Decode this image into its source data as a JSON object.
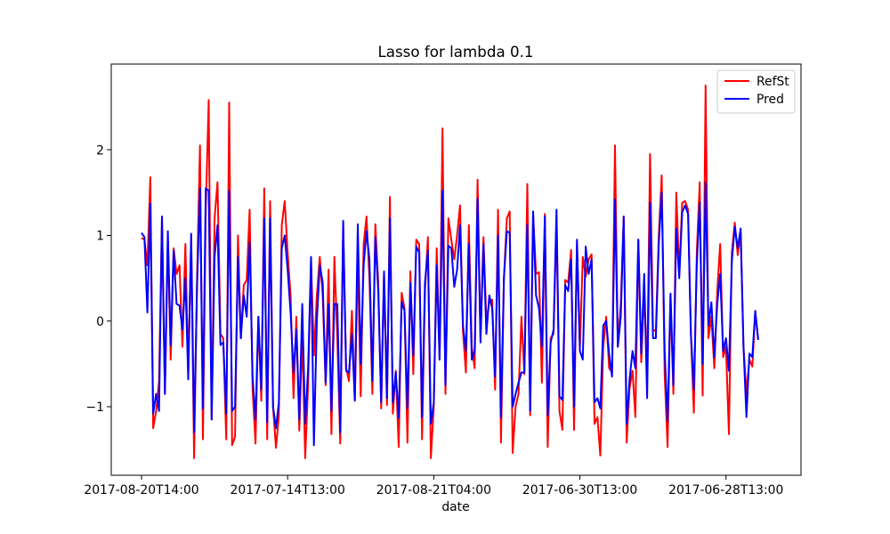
{
  "chart_data": {
    "type": "line",
    "title": "Lasso for lambda 0.1",
    "xlabel": "date",
    "ylabel": "",
    "ylim": [
      -1.8,
      3.0
    ],
    "y_ticks": [
      -1,
      0,
      1,
      2
    ],
    "x_ticks": [
      {
        "index": 0,
        "label": "2017-08-20T14:00"
      },
      {
        "index": 50,
        "label": "2017-07-14T13:00"
      },
      {
        "index": 100,
        "label": "2017-08-21T04:00"
      },
      {
        "index": 150,
        "label": "2017-06-30T13:00"
      },
      {
        "index": 200,
        "label": "2017-06-28T13:00"
      }
    ],
    "n_points": 216,
    "grid": false,
    "legend_position": "upper right",
    "series": [
      {
        "name": "RefSt",
        "color": "#ff0000",
        "values": [
          0.97,
          0.95,
          0.65,
          1.68,
          -1.25,
          -1.05,
          -0.7,
          1.2,
          -0.85,
          0.95,
          -0.45,
          0.85,
          0.55,
          0.65,
          -0.3,
          0.9,
          -0.6,
          0.95,
          -1.6,
          0.5,
          2.05,
          -1.38,
          1.3,
          2.58,
          -1.15,
          1.2,
          1.62,
          -0.15,
          -0.2,
          -1.38,
          2.55,
          -1.45,
          -1.35,
          1.0,
          -0.2,
          0.42,
          0.48,
          1.3,
          -0.8,
          -1.43,
          0.05,
          -0.93,
          1.55,
          -1.38,
          1.4,
          -1.0,
          -1.48,
          -1.1,
          1.12,
          1.4,
          0.8,
          0.3,
          -0.9,
          0.05,
          -1.28,
          -0.15,
          -1.6,
          -0.75,
          0.72,
          -0.4,
          0.3,
          0.75,
          0.3,
          -0.75,
          0.6,
          -1.32,
          0.75,
          -0.2,
          -1.43,
          1.08,
          -0.55,
          -0.7,
          0.12,
          -0.92,
          0.75,
          -0.88,
          0.9,
          1.22,
          0.5,
          -0.85,
          1.13,
          0.45,
          -1.02,
          0.55,
          -0.98,
          1.45,
          -1.08,
          -0.58,
          -1.47,
          0.33,
          0.15,
          -1.42,
          0.58,
          -0.62,
          0.95,
          0.9,
          -1.38,
          0.35,
          0.98,
          -1.6,
          -1.0,
          0.85,
          -0.45,
          2.25,
          -0.85,
          1.2,
          0.95,
          0.72,
          1.0,
          1.35,
          -0.12,
          -0.6,
          1.12,
          -0.3,
          -0.55,
          1.65,
          -0.2,
          0.98,
          0.0,
          0.22,
          0.25,
          -0.8,
          1.3,
          -1.42,
          0.5,
          1.2,
          1.28,
          -1.54,
          -1.0,
          -0.85,
          0.05,
          -0.62,
          1.6,
          -1.1,
          1.25,
          0.55,
          0.57,
          -0.72,
          1.25,
          -1.47,
          -0.2,
          -0.15,
          1.2,
          -1.05,
          -1.27,
          0.48,
          0.45,
          0.83,
          -1.27,
          0.9,
          -0.3,
          0.75,
          0.52,
          0.72,
          0.78,
          -1.2,
          -1.12,
          -1.57,
          -0.3,
          0.05,
          -0.55,
          -0.6,
          2.05,
          -0.3,
          0.2,
          1.22,
          -1.42,
          -0.78,
          -0.58,
          -1.12,
          0.95,
          -0.48,
          0.35,
          -0.62,
          1.95,
          -0.1,
          -0.12,
          1.0,
          1.7,
          -0.62,
          -1.47,
          0.3,
          -0.85,
          1.5,
          0.55,
          1.38,
          1.4,
          1.3,
          -0.15,
          -1.07,
          0.8,
          1.62,
          -0.87,
          2.75,
          -0.2,
          0.05,
          -0.55,
          0.35,
          0.9,
          -0.42,
          -0.3,
          -1.32,
          0.8,
          1.15,
          0.77,
          1.03,
          -0.3,
          -0.85,
          -0.45,
          -0.53,
          0.1,
          -0.22
        ]
      },
      {
        "name": "Pred",
        "color": "#0000ff",
        "values": [
          1.03,
          0.98,
          0.1,
          1.37,
          -1.08,
          -0.85,
          -1.05,
          1.22,
          -0.85,
          1.05,
          -0.28,
          0.82,
          0.2,
          0.18,
          -0.1,
          0.5,
          -0.68,
          1.02,
          -1.3,
          0.4,
          1.55,
          -1.02,
          1.55,
          1.52,
          -1.15,
          0.75,
          1.12,
          -0.28,
          -0.25,
          -1.08,
          1.52,
          -1.05,
          -1.0,
          0.75,
          -0.2,
          0.3,
          0.05,
          0.92,
          -0.65,
          -1.15,
          0.05,
          -0.8,
          1.2,
          -1.18,
          1.2,
          -1.0,
          -1.25,
          -0.95,
          0.85,
          1.0,
          0.6,
          0.1,
          -0.6,
          -0.1,
          -1.15,
          0.2,
          -1.2,
          -0.55,
          0.75,
          -1.45,
          0.0,
          0.65,
          0.45,
          -0.72,
          0.2,
          -1.05,
          0.2,
          0.2,
          -1.3,
          1.17,
          -0.58,
          -0.6,
          -0.15,
          -0.93,
          1.13,
          -0.5,
          0.65,
          1.05,
          0.72,
          -0.7,
          0.98,
          0.35,
          -0.95,
          0.58,
          -0.9,
          1.2,
          -0.95,
          -0.6,
          -1.13,
          0.22,
          0.12,
          -1.02,
          0.45,
          -0.4,
          0.87,
          0.8,
          -1.12,
          0.45,
          0.82,
          -1.2,
          -0.95,
          0.65,
          -0.45,
          1.52,
          -0.75,
          0.88,
          0.85,
          0.4,
          0.6,
          1.12,
          -0.05,
          -0.35,
          0.9,
          -0.45,
          -0.35,
          1.43,
          -0.25,
          0.9,
          -0.15,
          0.3,
          0.15,
          -0.65,
          1.0,
          -1.12,
          0.5,
          1.05,
          1.03,
          -1.0,
          -0.85,
          -0.72,
          -0.6,
          -0.6,
          1.12,
          -1.05,
          1.28,
          0.3,
          0.15,
          -0.3,
          1.22,
          -1.1,
          -0.25,
          -0.1,
          1.3,
          -0.88,
          -0.92,
          0.42,
          0.35,
          0.72,
          -1.0,
          0.95,
          -0.35,
          -0.45,
          0.87,
          0.55,
          0.72,
          -0.95,
          -0.9,
          -1.02,
          -0.05,
          0.0,
          -0.38,
          -0.65,
          1.42,
          -0.3,
          0.05,
          1.22,
          -1.2,
          -0.68,
          -0.35,
          -0.55,
          0.95,
          -0.38,
          0.55,
          -0.9,
          1.38,
          -0.2,
          -0.2,
          0.9,
          1.5,
          -0.35,
          -1.17,
          0.32,
          -0.75,
          1.08,
          0.5,
          1.27,
          1.35,
          1.25,
          -0.15,
          -0.8,
          0.65,
          1.38,
          -0.5,
          1.62,
          -0.05,
          0.22,
          -0.42,
          0.2,
          0.55,
          -0.35,
          -0.2,
          -0.58,
          0.7,
          1.1,
          0.85,
          1.08,
          -0.3,
          -1.12,
          -0.38,
          -0.42,
          0.12,
          -0.22
        ]
      }
    ]
  }
}
